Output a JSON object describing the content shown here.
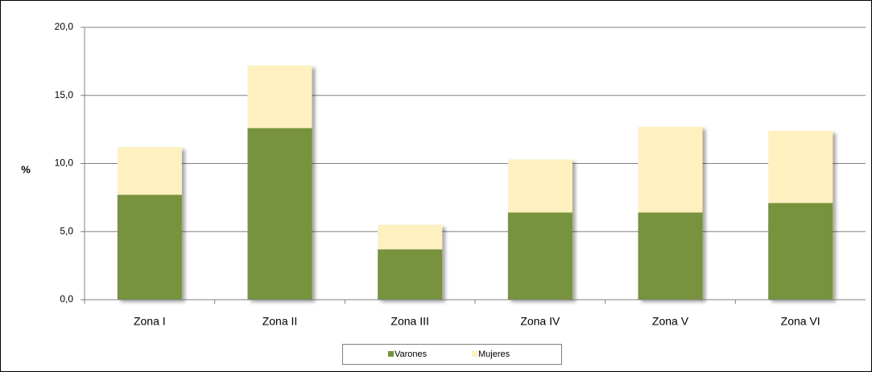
{
  "chart_data": {
    "type": "stacked_bar",
    "y_label": "%",
    "categories": [
      "Zona I",
      "Zona II",
      "Zona III",
      "Zona IV",
      "Zona V",
      "Zona VI"
    ],
    "series": [
      {
        "name": "Varones",
        "color": "#77933c",
        "values": [
          7.7,
          12.6,
          3.7,
          6.4,
          6.4,
          7.1
        ]
      },
      {
        "name": "Mujeres",
        "color": "#fff0c0",
        "values": [
          3.5,
          4.6,
          1.8,
          3.9,
          6.3,
          5.3
        ]
      }
    ],
    "ylim": [
      0,
      20
    ],
    "yticks": [
      {
        "value": 0,
        "label": "0,0"
      },
      {
        "value": 5,
        "label": "5,0"
      },
      {
        "value": 10,
        "label": "10,0"
      },
      {
        "value": 15,
        "label": "15,0"
      },
      {
        "value": 20,
        "label": "20,0"
      }
    ],
    "grid": true,
    "legend": "bottom"
  }
}
